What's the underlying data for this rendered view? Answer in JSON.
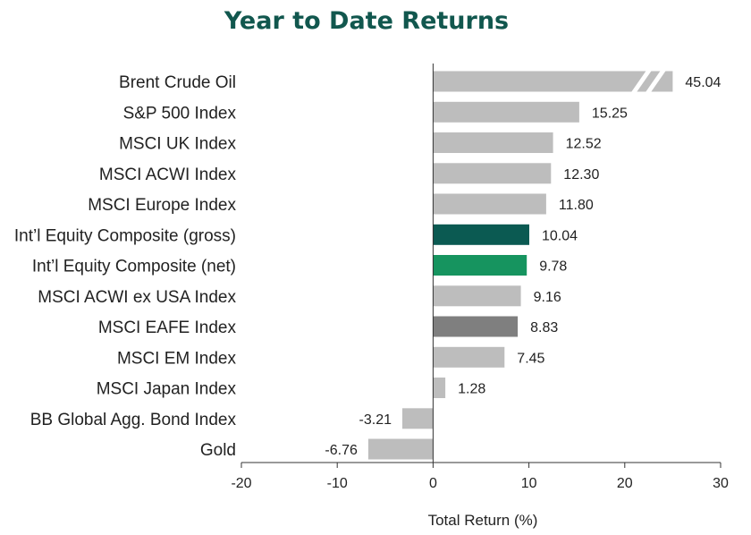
{
  "chart_data": {
    "type": "bar",
    "orientation": "horizontal",
    "title": "Year to Date Returns",
    "xlabel": "Total Return (%)",
    "ylabel": "",
    "xlim": [
      -20,
      30
    ],
    "xticks": [
      -20,
      -10,
      0,
      10,
      20,
      30
    ],
    "axis_break": {
      "category": "Brent Crude Oil",
      "display_cap": 25
    },
    "grid": false,
    "categories": [
      "Brent Crude Oil",
      "S&P 500 Index",
      "MSCI UK Index",
      "MSCI ACWI Index",
      "MSCI Europe Index",
      "Int’l Equity Composite (gross)",
      "Int’l Equity Composite (net)",
      "MSCI ACWI ex USA Index",
      "MSCI EAFE Index",
      "MSCI EM Index",
      "MSCI Japan Index",
      "BB Global Agg. Bond Index",
      "Gold"
    ],
    "values": [
      45.04,
      15.25,
      12.52,
      12.3,
      11.8,
      10.04,
      9.78,
      9.16,
      8.83,
      7.45,
      1.28,
      -3.21,
      -6.76
    ],
    "value_labels": [
      "45.04",
      "15.25",
      "12.52",
      "12.30",
      "11.80",
      "10.04",
      "9.78",
      "9.16",
      "8.83",
      "7.45",
      "1.28",
      "-3.21",
      "-6.76"
    ],
    "colors": [
      "#bdbdbd",
      "#bdbdbd",
      "#bdbdbd",
      "#bdbdbd",
      "#bdbdbd",
      "#0b5a52",
      "#16945f",
      "#bdbdbd",
      "#7f7f7f",
      "#bdbdbd",
      "#bdbdbd",
      "#bdbdbd",
      "#bdbdbd"
    ]
  }
}
